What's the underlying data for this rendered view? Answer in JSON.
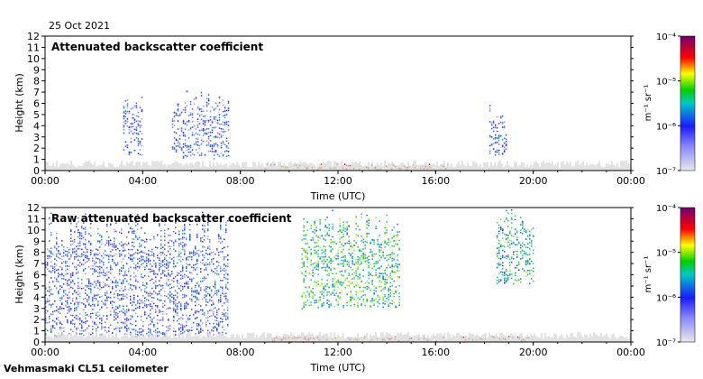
{
  "date": "25 Oct 2021",
  "footer": "Vehmasmaki CL51 ceilometer",
  "chart_data": [
    {
      "type": "heatmap",
      "title": "Attenuated backscatter coefficient",
      "xlabel": "Time (UTC)",
      "ylabel": "Height (km)",
      "xticks": [
        "00:00",
        "04:00",
        "08:00",
        "12:00",
        "16:00",
        "20:00",
        "00:00"
      ],
      "xlim": [
        0,
        24
      ],
      "yticks": [
        "0",
        "1",
        "2",
        "3",
        "4",
        "5",
        "6",
        "7",
        "8",
        "9",
        "10",
        "11",
        "12"
      ],
      "ylim": [
        0,
        12
      ],
      "colorbar": {
        "ticks": [
          "10⁻⁷",
          "10⁻⁶",
          "10⁻⁵",
          "10⁻⁴"
        ],
        "unit": "m⁻¹ sr⁻¹",
        "scale": "log",
        "range": [
          1e-07,
          0.0001
        ]
      },
      "features": [
        {
          "start": 3.2,
          "end": 4.0,
          "top_km": 7.0,
          "bottom_km": 1.2,
          "intensity": 0.3
        },
        {
          "start": 5.2,
          "end": 7.5,
          "top_km": 7.2,
          "bottom_km": 1.1,
          "intensity": 0.3
        },
        {
          "start": 18.2,
          "end": 18.9,
          "top_km": 6.0,
          "bottom_km": 1.3,
          "intensity": 0.3
        },
        {
          "start": 9.0,
          "end": 16.5,
          "top_km": 0.7,
          "bottom_km": 0.0,
          "intensity": 0.85
        }
      ]
    },
    {
      "type": "heatmap",
      "title": "Raw attenuated backscatter coefficient",
      "xlabel": "Time (UTC)",
      "ylabel": "Height (km)",
      "xticks": [
        "00:00",
        "04:00",
        "08:00",
        "12:00",
        "16:00",
        "20:00",
        "00:00"
      ],
      "xlim": [
        0,
        24
      ],
      "yticks": [
        "0",
        "1",
        "2",
        "3",
        "4",
        "5",
        "6",
        "7",
        "8",
        "9",
        "10",
        "11",
        "12"
      ],
      "ylim": [
        0,
        12
      ],
      "colorbar": {
        "ticks": [
          "10⁻⁷",
          "10⁻⁶",
          "10⁻⁵",
          "10⁻⁴"
        ],
        "unit": "m⁻¹ sr⁻¹",
        "scale": "log",
        "range": [
          1e-07,
          0.0001
        ]
      },
      "features": [
        {
          "start": 0.0,
          "end": 7.5,
          "top_km": 12.0,
          "bottom_km": 0.5,
          "intensity": 0.3
        },
        {
          "start": 10.5,
          "end": 14.5,
          "top_km": 12.0,
          "bottom_km": 3.0,
          "intensity": 0.55
        },
        {
          "start": 18.5,
          "end": 20.0,
          "top_km": 12.0,
          "bottom_km": 5.0,
          "intensity": 0.5
        },
        {
          "start": 9.0,
          "end": 20.0,
          "top_km": 0.6,
          "bottom_km": 0.0,
          "intensity": 0.85
        }
      ]
    }
  ]
}
